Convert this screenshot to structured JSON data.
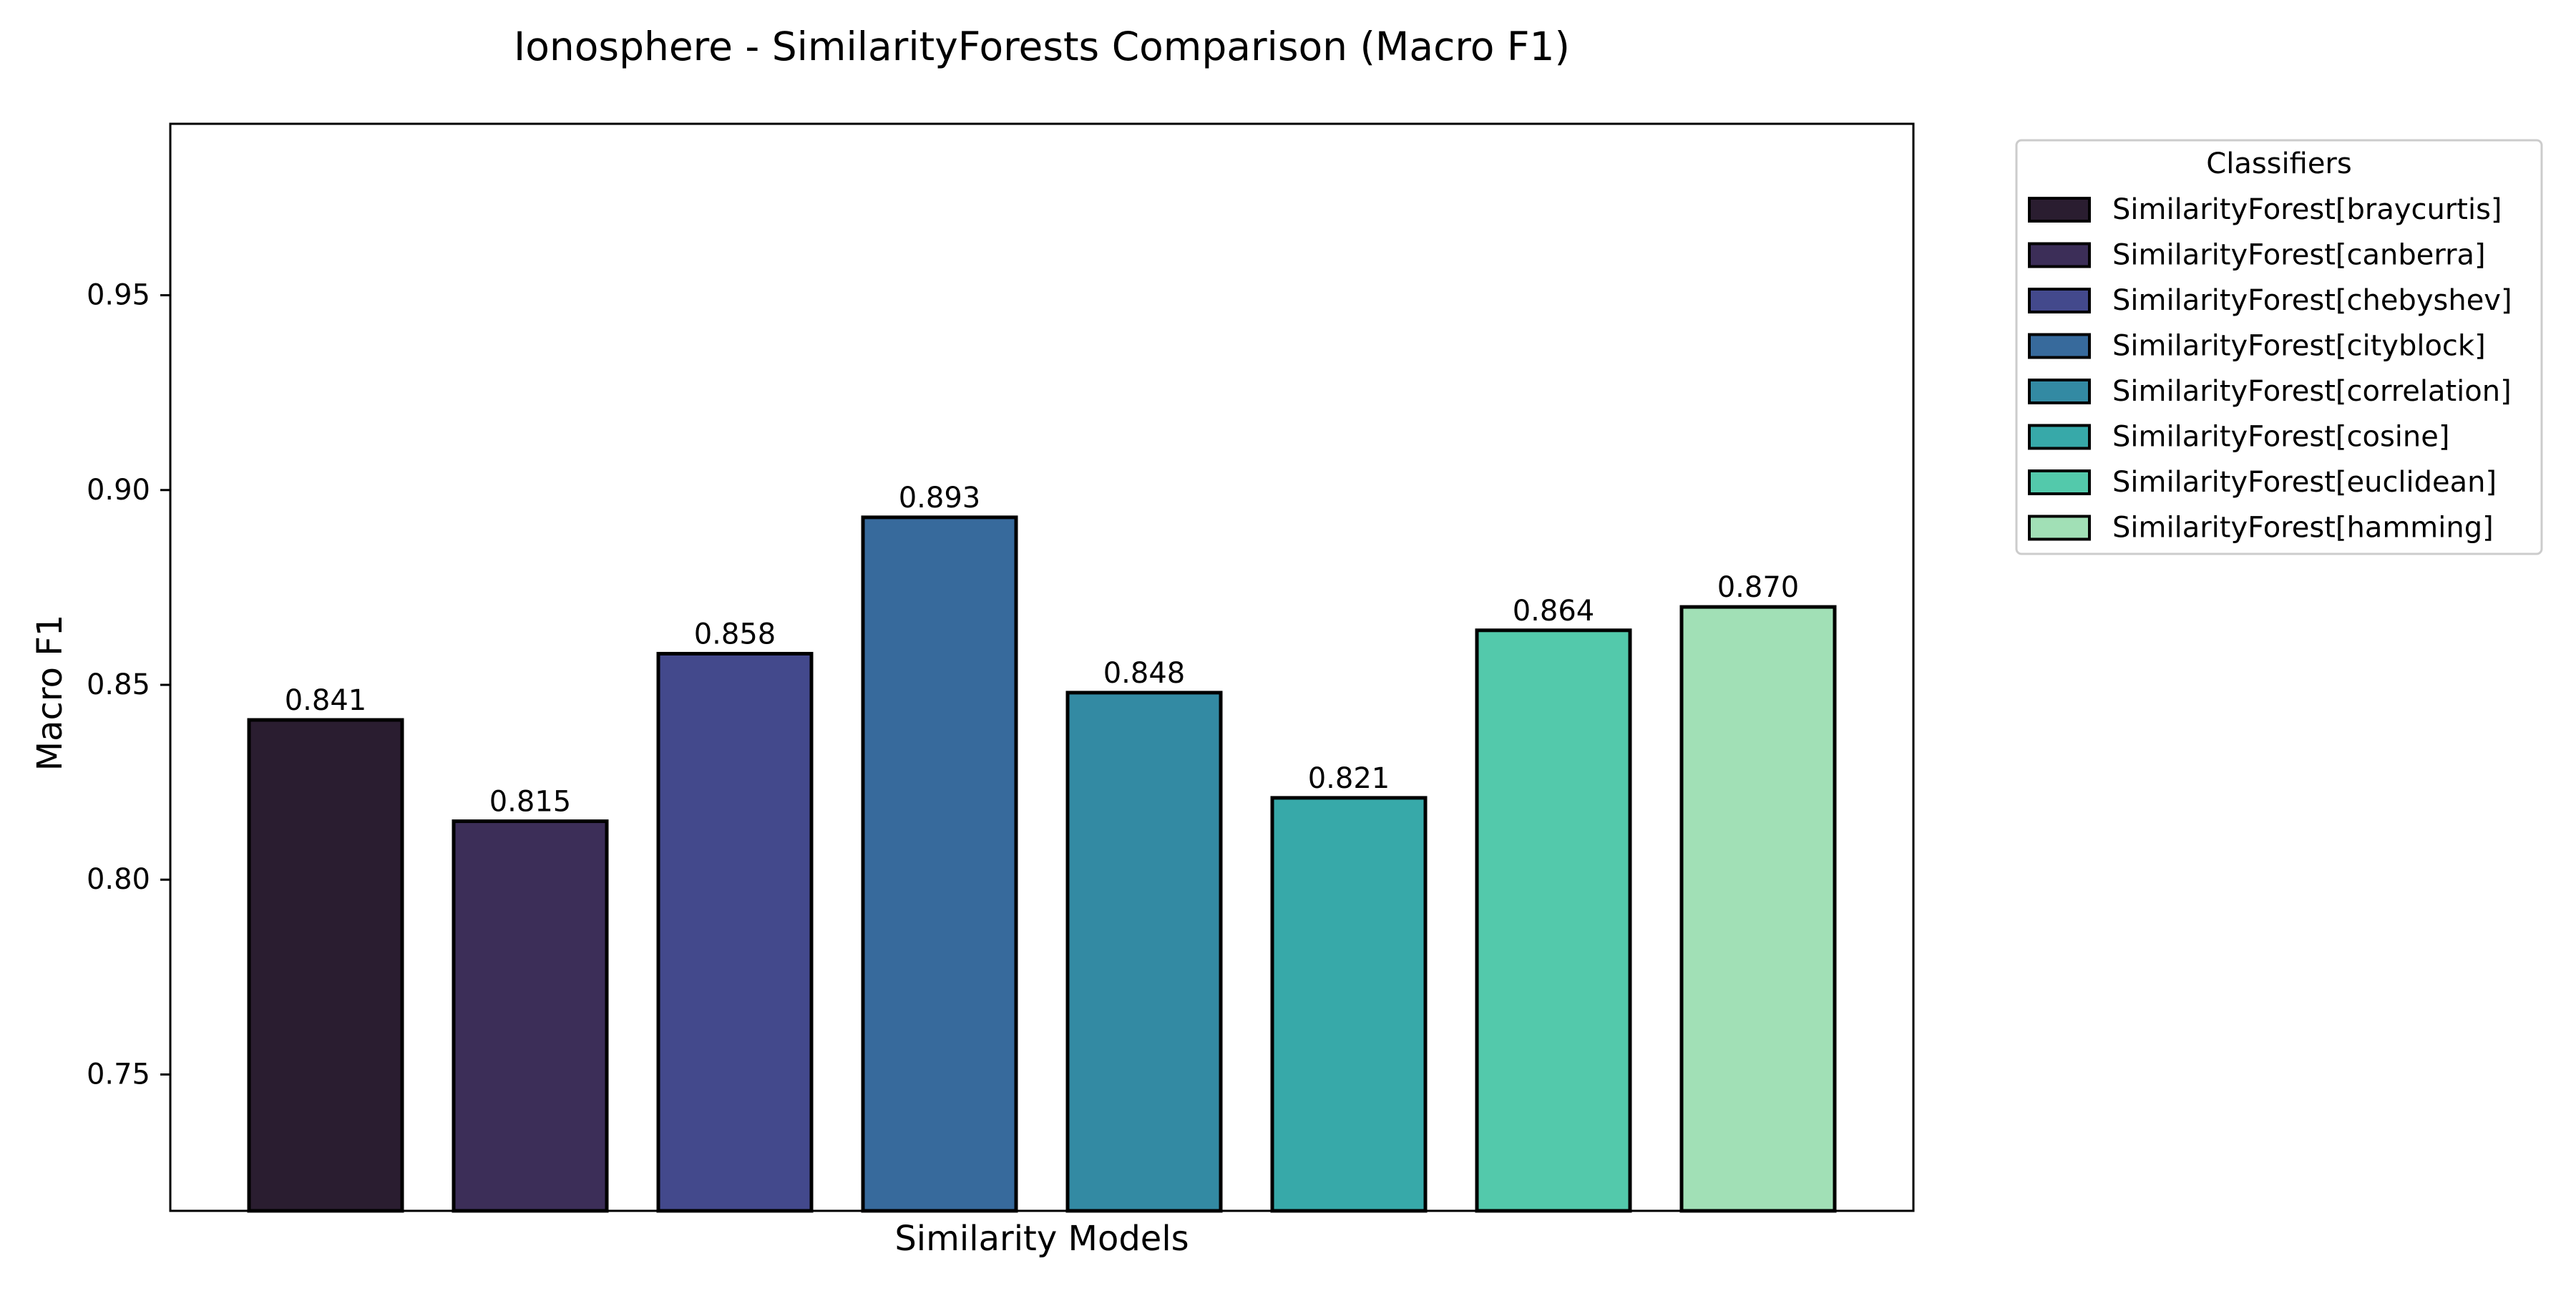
{
  "chart_data": {
    "type": "bar",
    "title": "Ionosphere - SimilarityForests Comparison (Macro F1)",
    "xlabel": "Similarity Models",
    "ylabel": "Macro F1",
    "ylim": [
      0.715,
      0.994
    ],
    "yticks": [
      0.75,
      0.8,
      0.85,
      0.9,
      0.95
    ],
    "ytick_labels": [
      "0.75",
      "0.80",
      "0.85",
      "0.90",
      "0.95"
    ],
    "grid": false,
    "legend": {
      "title": "Classifiers",
      "placement": "outside-top-right"
    },
    "series": [
      {
        "name": "SimilarityForest[braycurtis]",
        "value": 0.841,
        "label": "0.841",
        "color": "#2a1d30"
      },
      {
        "name": "SimilarityForest[canberra]",
        "value": 0.815,
        "label": "0.815",
        "color": "#3c2e58"
      },
      {
        "name": "SimilarityForest[chebyshev]",
        "value": 0.858,
        "label": "0.858",
        "color": "#43498c"
      },
      {
        "name": "SimilarityForest[cityblock]",
        "value": 0.893,
        "label": "0.893",
        "color": "#376a9c"
      },
      {
        "name": "SimilarityForest[correlation]",
        "value": 0.848,
        "label": "0.848",
        "color": "#338aa3"
      },
      {
        "name": "SimilarityForest[cosine]",
        "value": 0.821,
        "label": "0.821",
        "color": "#37a9a9"
      },
      {
        "name": "SimilarityForest[euclidean]",
        "value": 0.864,
        "label": "0.864",
        "color": "#53c9ab"
      },
      {
        "name": "SimilarityForest[hamming]",
        "value": 0.87,
        "label": "0.870",
        "color": "#a1e0b6"
      }
    ]
  }
}
